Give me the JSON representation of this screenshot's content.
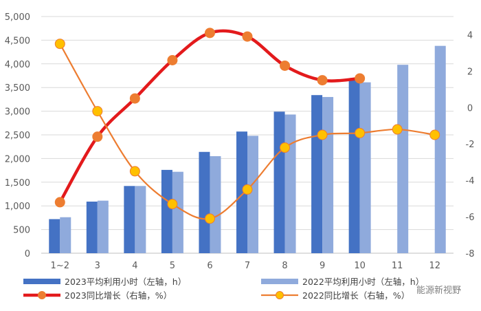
{
  "chart_data": {
    "type": "bar",
    "categories": [
      "1~2",
      "3",
      "4",
      "5",
      "6",
      "7",
      "8",
      "9",
      "10",
      "11",
      "12"
    ],
    "left_axis": {
      "min": 0,
      "max": 5000,
      "step": 500,
      "tick_labels": [
        "0",
        "500",
        "1,000",
        "1,500",
        "2,000",
        "2,500",
        "3,000",
        "3,500",
        "4,000",
        "4,500",
        "5,000"
      ]
    },
    "right_axis": {
      "min": -8,
      "max": 5,
      "step": 2,
      "tick_labels": [
        "-8",
        "-6",
        "-4",
        "-2",
        "0",
        "2",
        "4"
      ]
    },
    "series": [
      {
        "name": "2023平均利用小时（左轴，h）",
        "kind": "bar",
        "axis": "left",
        "color": "#4472C4",
        "values": [
          720,
          1090,
          1420,
          1760,
          2140,
          2570,
          2990,
          3340,
          3670,
          null,
          null
        ]
      },
      {
        "name": "2022平均利用小时（左轴，h）",
        "kind": "bar",
        "axis": "left",
        "color": "#8FAADC",
        "values": [
          760,
          1110,
          1420,
          1720,
          2050,
          2480,
          2930,
          3300,
          3610,
          3980,
          4380
        ]
      },
      {
        "name": "2023同比增长（右轴，%）",
        "kind": "line",
        "axis": "right",
        "color": "#E31A1C",
        "marker_color": "#ED7D31",
        "values": [
          -5.2,
          -1.6,
          0.5,
          2.6,
          4.1,
          3.9,
          2.3,
          1.5,
          1.6,
          null,
          null
        ]
      },
      {
        "name": "2022同比增长（右轴，%）",
        "kind": "line",
        "axis": "right",
        "color": "#ED7D31",
        "marker_color": "#FFC000",
        "values": [
          3.5,
          -0.2,
          -3.5,
          -5.3,
          -6.1,
          -4.5,
          -2.2,
          -1.5,
          -1.4,
          -1.2,
          -1.5
        ]
      }
    ],
    "grid": true,
    "legend_position": "bottom"
  },
  "watermark": "能源新视野"
}
